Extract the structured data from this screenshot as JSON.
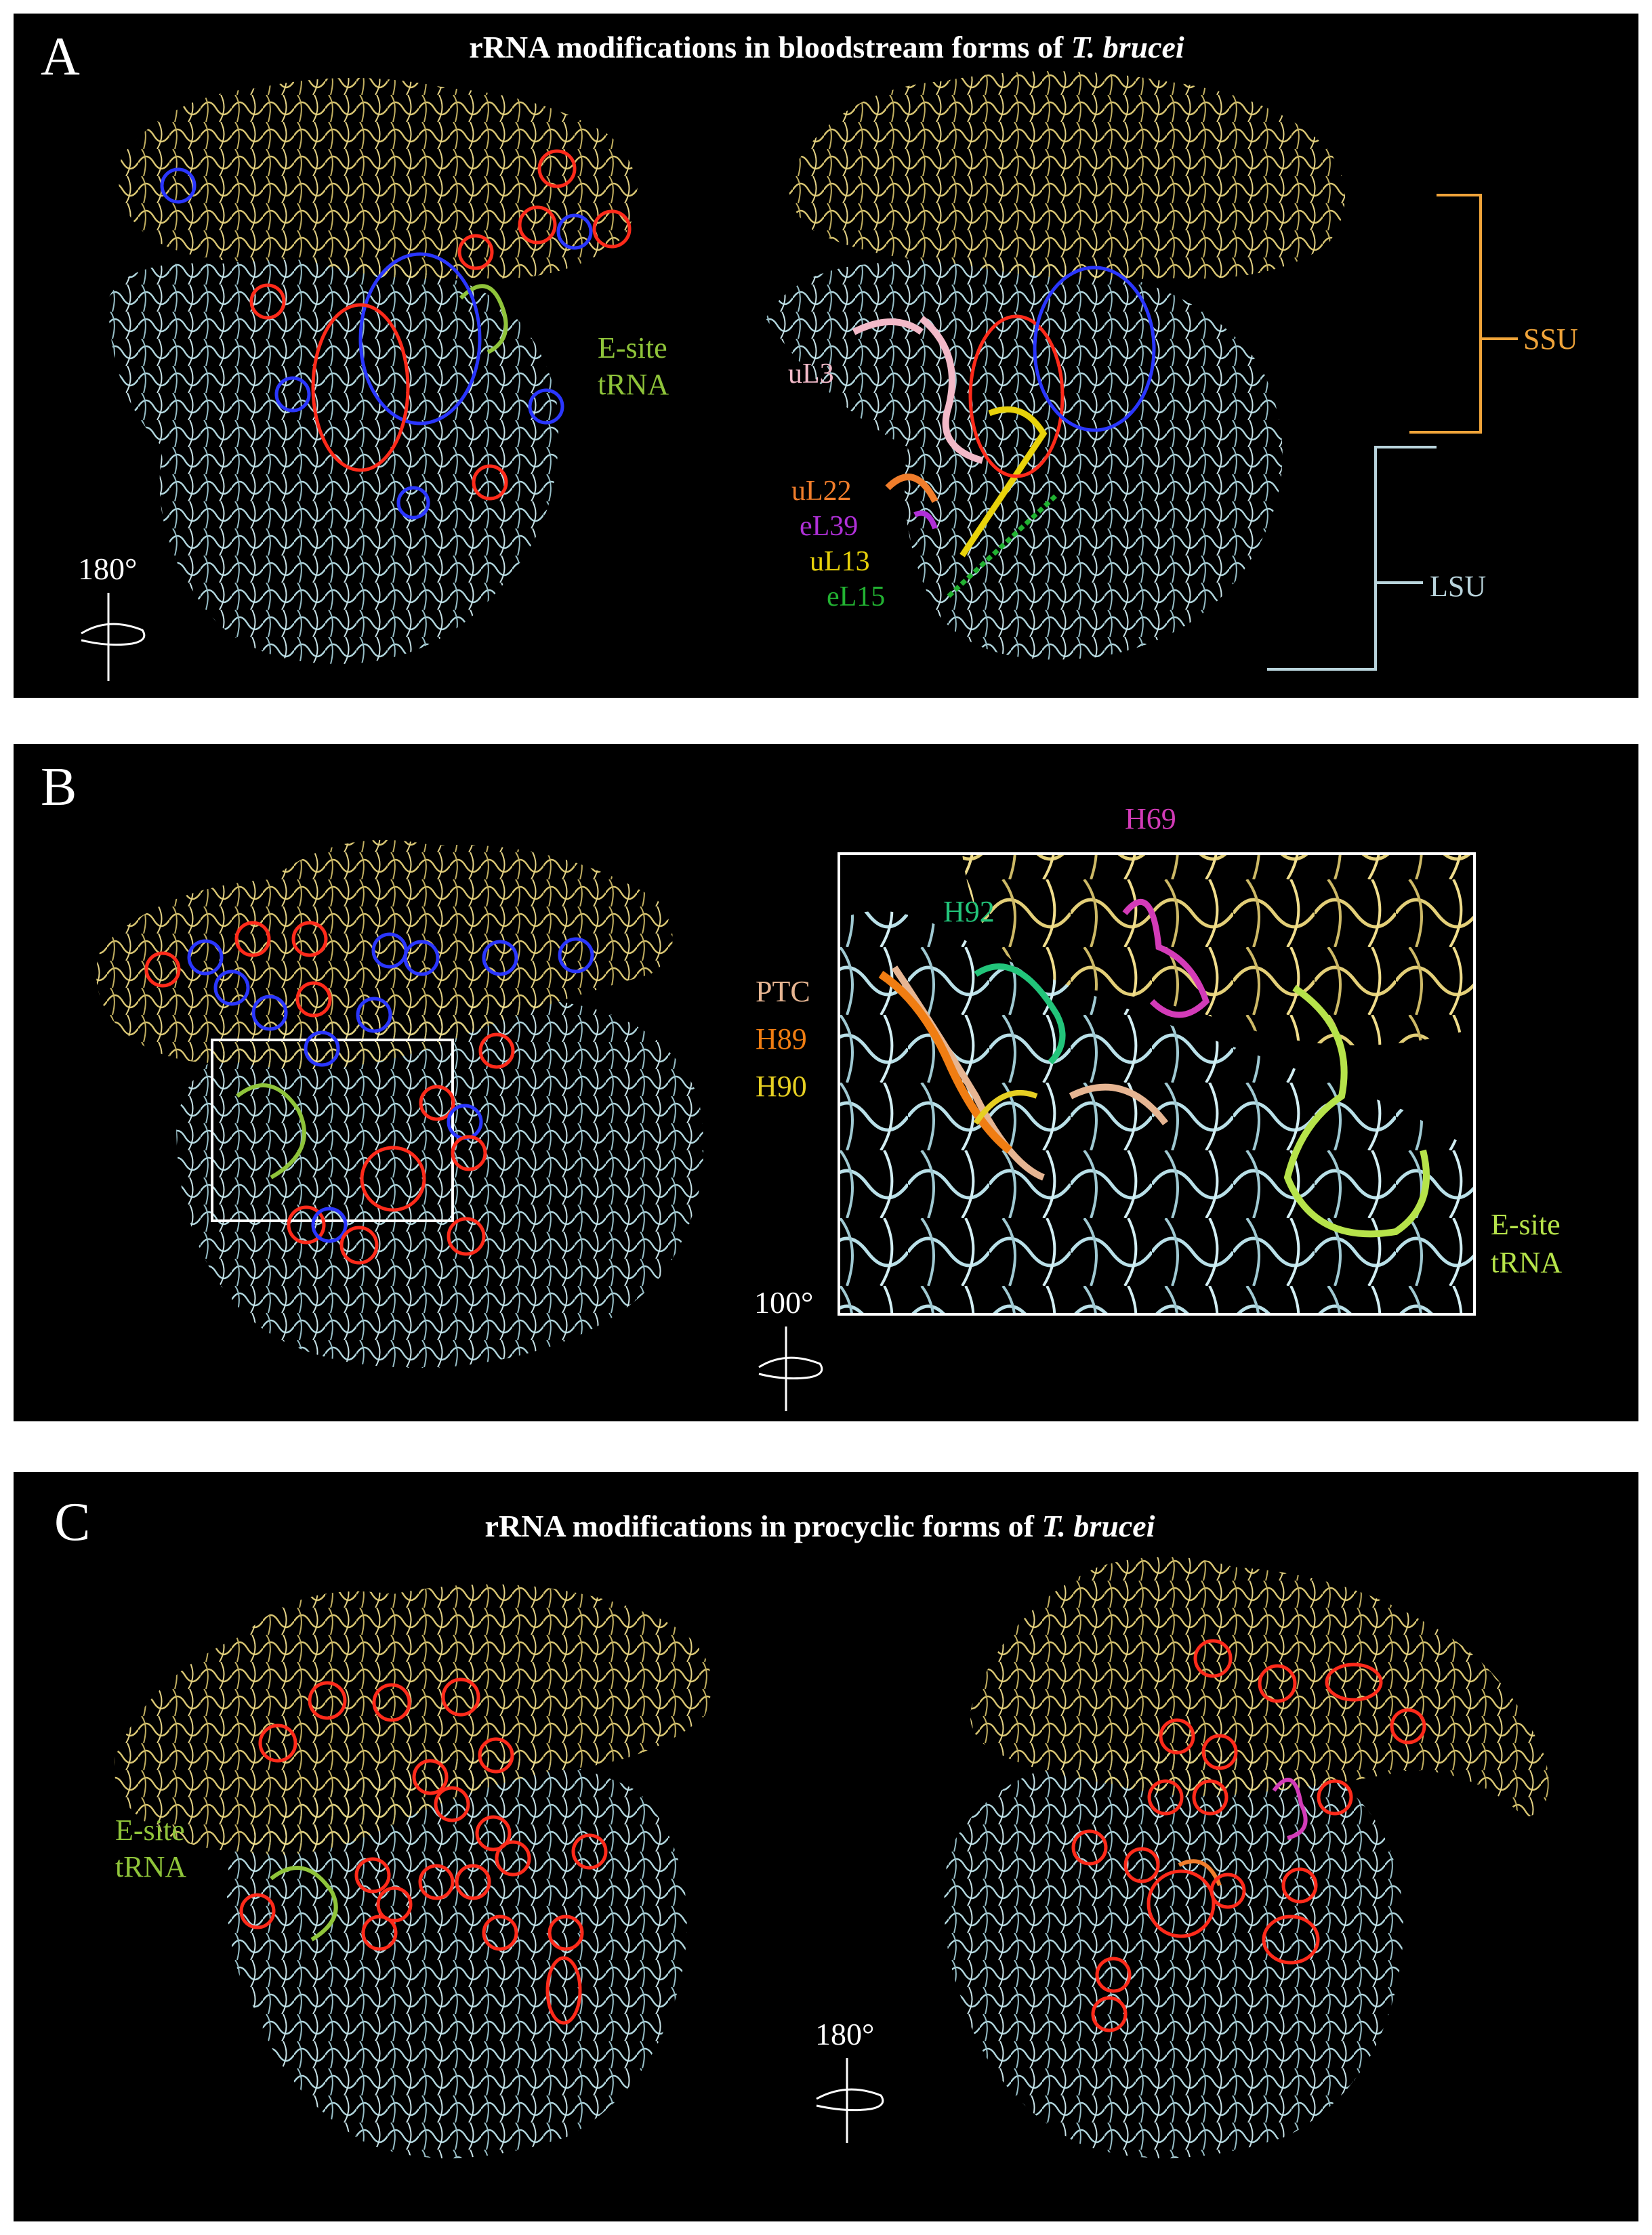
{
  "panels": {
    "A": {
      "letter": "A",
      "title_main": "rRNA modifications in bloodstream forms of ",
      "title_italic": "T. brucei",
      "etrna_line1": "E-site",
      "etrna_line2": "tRNA",
      "rotation": "180°",
      "proteins": [
        {
          "label": "uL3",
          "color": "#f2b9c8"
        },
        {
          "label": "uL22",
          "color": "#f07d2b"
        },
        {
          "label": "eL39",
          "color": "#b030d8"
        },
        {
          "label": "uL13",
          "color": "#e8d20a"
        },
        {
          "label": "eL15",
          "color": "#22b232"
        }
      ],
      "ssu_label": "SSU",
      "lsu_label": "LSU"
    },
    "B": {
      "letter": "B",
      "rotation": "100°",
      "h69": "H69",
      "h92": "H92",
      "ptc": "PTC",
      "h89": "H89",
      "h90": "H90",
      "etrna_line1": "E-site",
      "etrna_line2": "tRNA"
    },
    "C": {
      "letter": "C",
      "title_main": "rRNA modifications in procyclic forms of ",
      "title_italic": "T. brucei",
      "etrna_line1": "E-site",
      "etrna_line2": "tRNA",
      "rotation": "180°"
    }
  },
  "colors": {
    "ssu": "#e3cf78",
    "lsu": "#b9e0e8",
    "red_marker": "#ff2a1a",
    "blue_marker": "#2a36ff",
    "etrna": "#8fc43a",
    "etrna_b": "#b6e34a",
    "ptc": "#e6b592",
    "h89": "#f07d12",
    "h90": "#e6cf22",
    "h92": "#22c47a",
    "h69": "#d33bb8",
    "ssu_bracket": "#f0a43a",
    "lsu_bracket": "#b9d4dc"
  }
}
